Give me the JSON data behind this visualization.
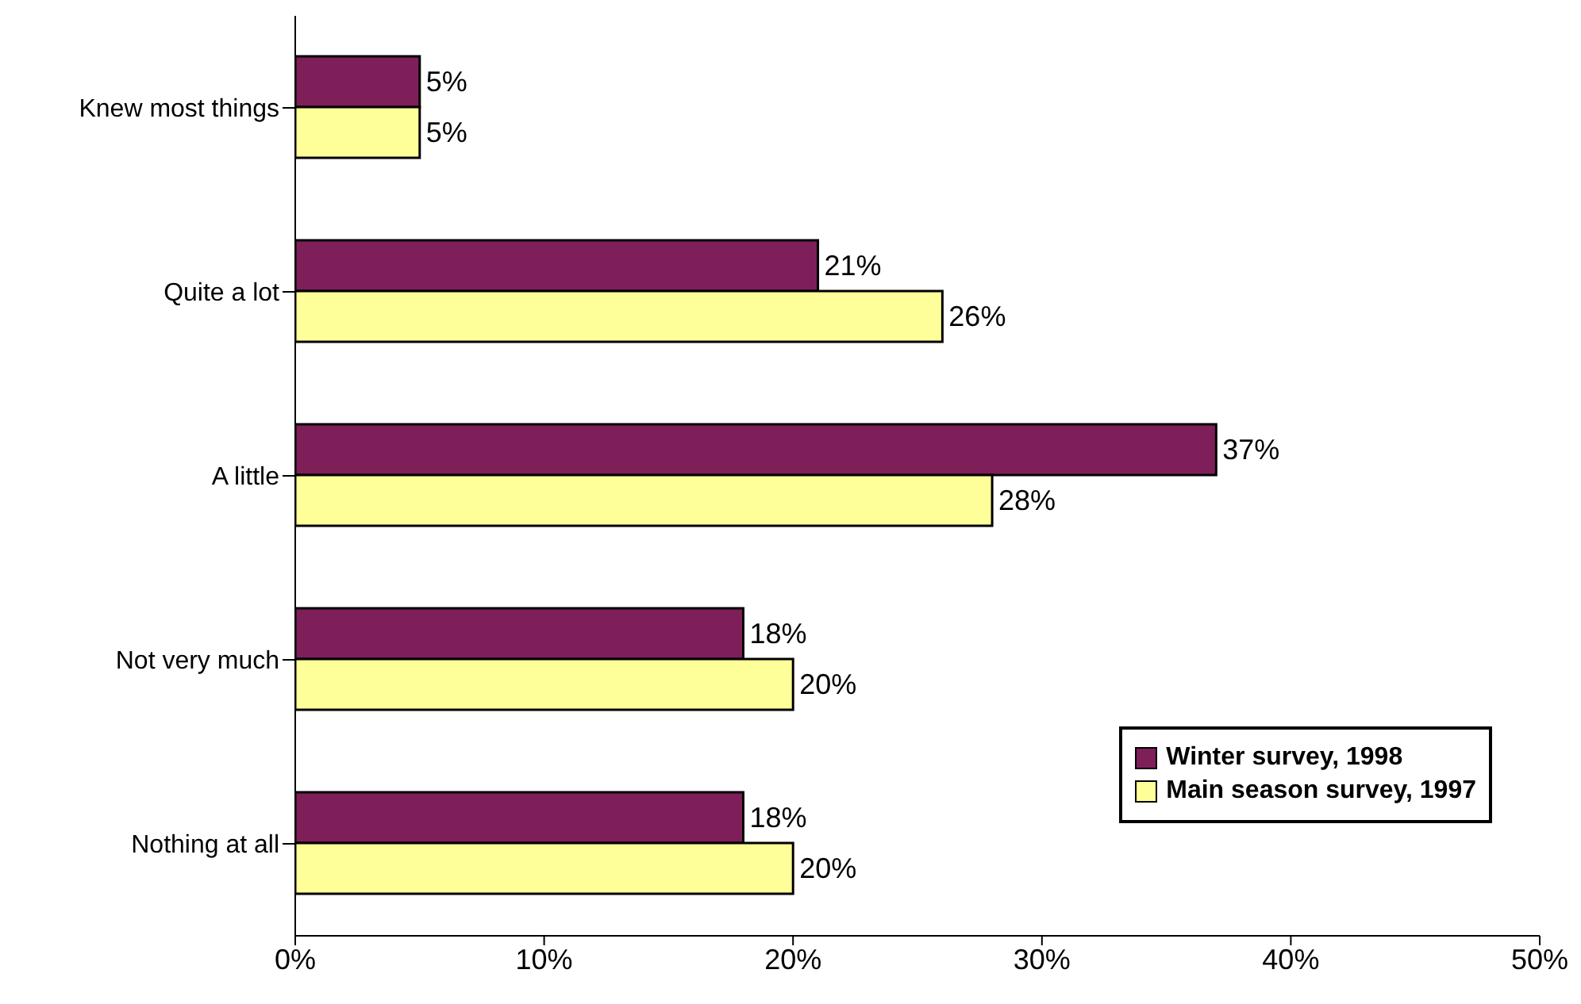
{
  "chart_data": {
    "type": "bar",
    "orientation": "horizontal",
    "categories": [
      "Knew most things",
      "Quite a lot",
      "A little",
      "Not very much",
      "Nothing at all"
    ],
    "series": [
      {
        "name": "Winter survey, 1998",
        "color": "#7f1f5a",
        "values": [
          5,
          21,
          37,
          18,
          18
        ],
        "value_labels": [
          "5%",
          "21%",
          "37%",
          "18%",
          "18%"
        ]
      },
      {
        "name": "Main season survey, 1997",
        "color": "#ffff99",
        "values": [
          5,
          26,
          28,
          20,
          20
        ],
        "value_labels": [
          "5%",
          "26%",
          "28%",
          "20%",
          "20%"
        ]
      }
    ],
    "xlim": [
      0,
      50
    ],
    "xticks": [
      {
        "value": 0,
        "label": "0%"
      },
      {
        "value": 10,
        "label": "10%"
      },
      {
        "value": 20,
        "label": "20%"
      },
      {
        "value": 30,
        "label": "30%"
      },
      {
        "value": 40,
        "label": "40%"
      },
      {
        "value": 50,
        "label": "50%"
      }
    ],
    "grid": false,
    "legend": "bottom right"
  }
}
